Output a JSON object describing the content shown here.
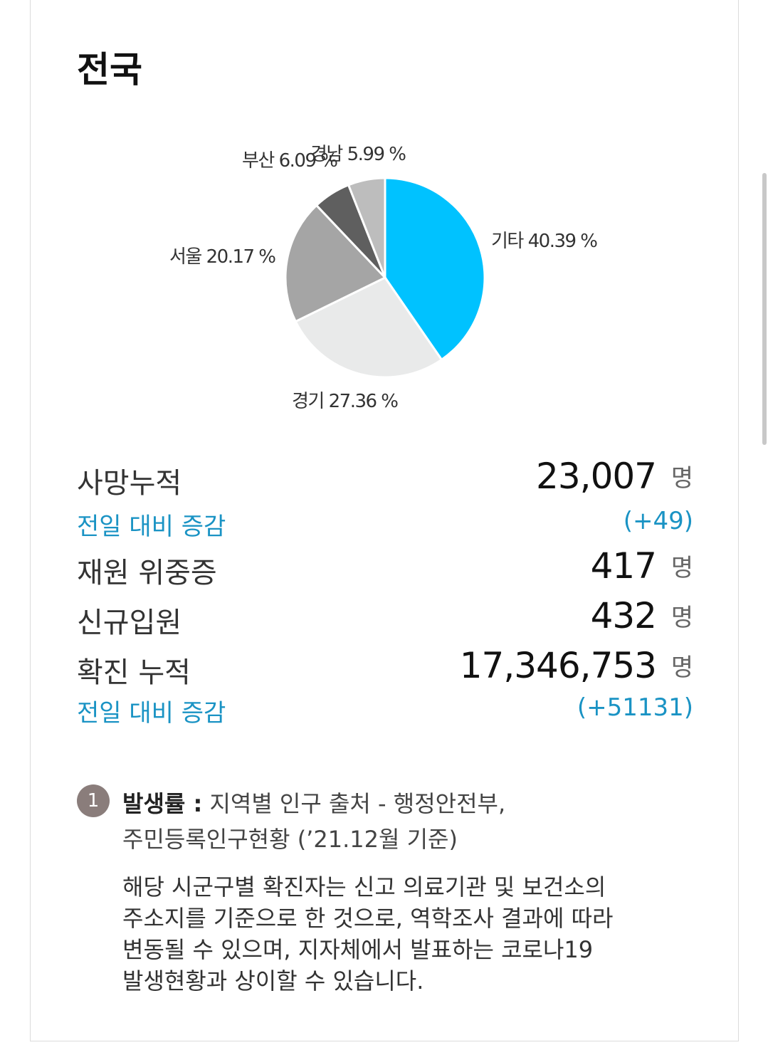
{
  "title": "전국",
  "chart_data": {
    "type": "pie",
    "slices": [
      {
        "name": "기타",
        "value": 40.39,
        "label": "기타 40.39 %",
        "color": "#00c2ff"
      },
      {
        "name": "경기",
        "value": 27.36,
        "label": "경기 27.36 %",
        "color": "#e9eaea"
      },
      {
        "name": "서울",
        "value": 20.17,
        "label": "서울 20.17 %",
        "color": "#a5a5a5"
      },
      {
        "name": "부산",
        "value": 6.09,
        "label": "부산 6.09 %",
        "color": "#5f5f5f"
      },
      {
        "name": "경남",
        "value": 5.99,
        "label": "경남 5.99 %",
        "color": "#bdbdbd"
      }
    ]
  },
  "stats": {
    "deaths": {
      "label": "사망누적",
      "value": "23,007",
      "unit": "명"
    },
    "deaths_delta": {
      "label": "전일 대비 증감",
      "value": "(+49)"
    },
    "critical": {
      "label": "재원 위중증",
      "value": "417",
      "unit": "명"
    },
    "admissions": {
      "label": "신규입원",
      "value": "432",
      "unit": "명"
    },
    "confirmed": {
      "label": "확진 누적",
      "value": "17,346,753",
      "unit": "명"
    },
    "confirmed_delta": {
      "label": "전일 대비 증감",
      "value": "(+51131)"
    }
  },
  "note": {
    "badge": "1",
    "bold": "발생률 :",
    "line1": " 지역별 인구 출처 - 행정안전부,",
    "line2": "주민등록인구현황 (’21.12월 기준)",
    "desc_lines": [
      "해당 시군구별 확진자는 신고 의료기관 및 보건소의",
      "주소지를 기준으로 한 것으로, 역학조사 결과에 따라",
      "변동될 수 있으며, 지자체에서 발표하는 코로나19",
      "발생현황과 상이할 수 있습니다."
    ]
  }
}
